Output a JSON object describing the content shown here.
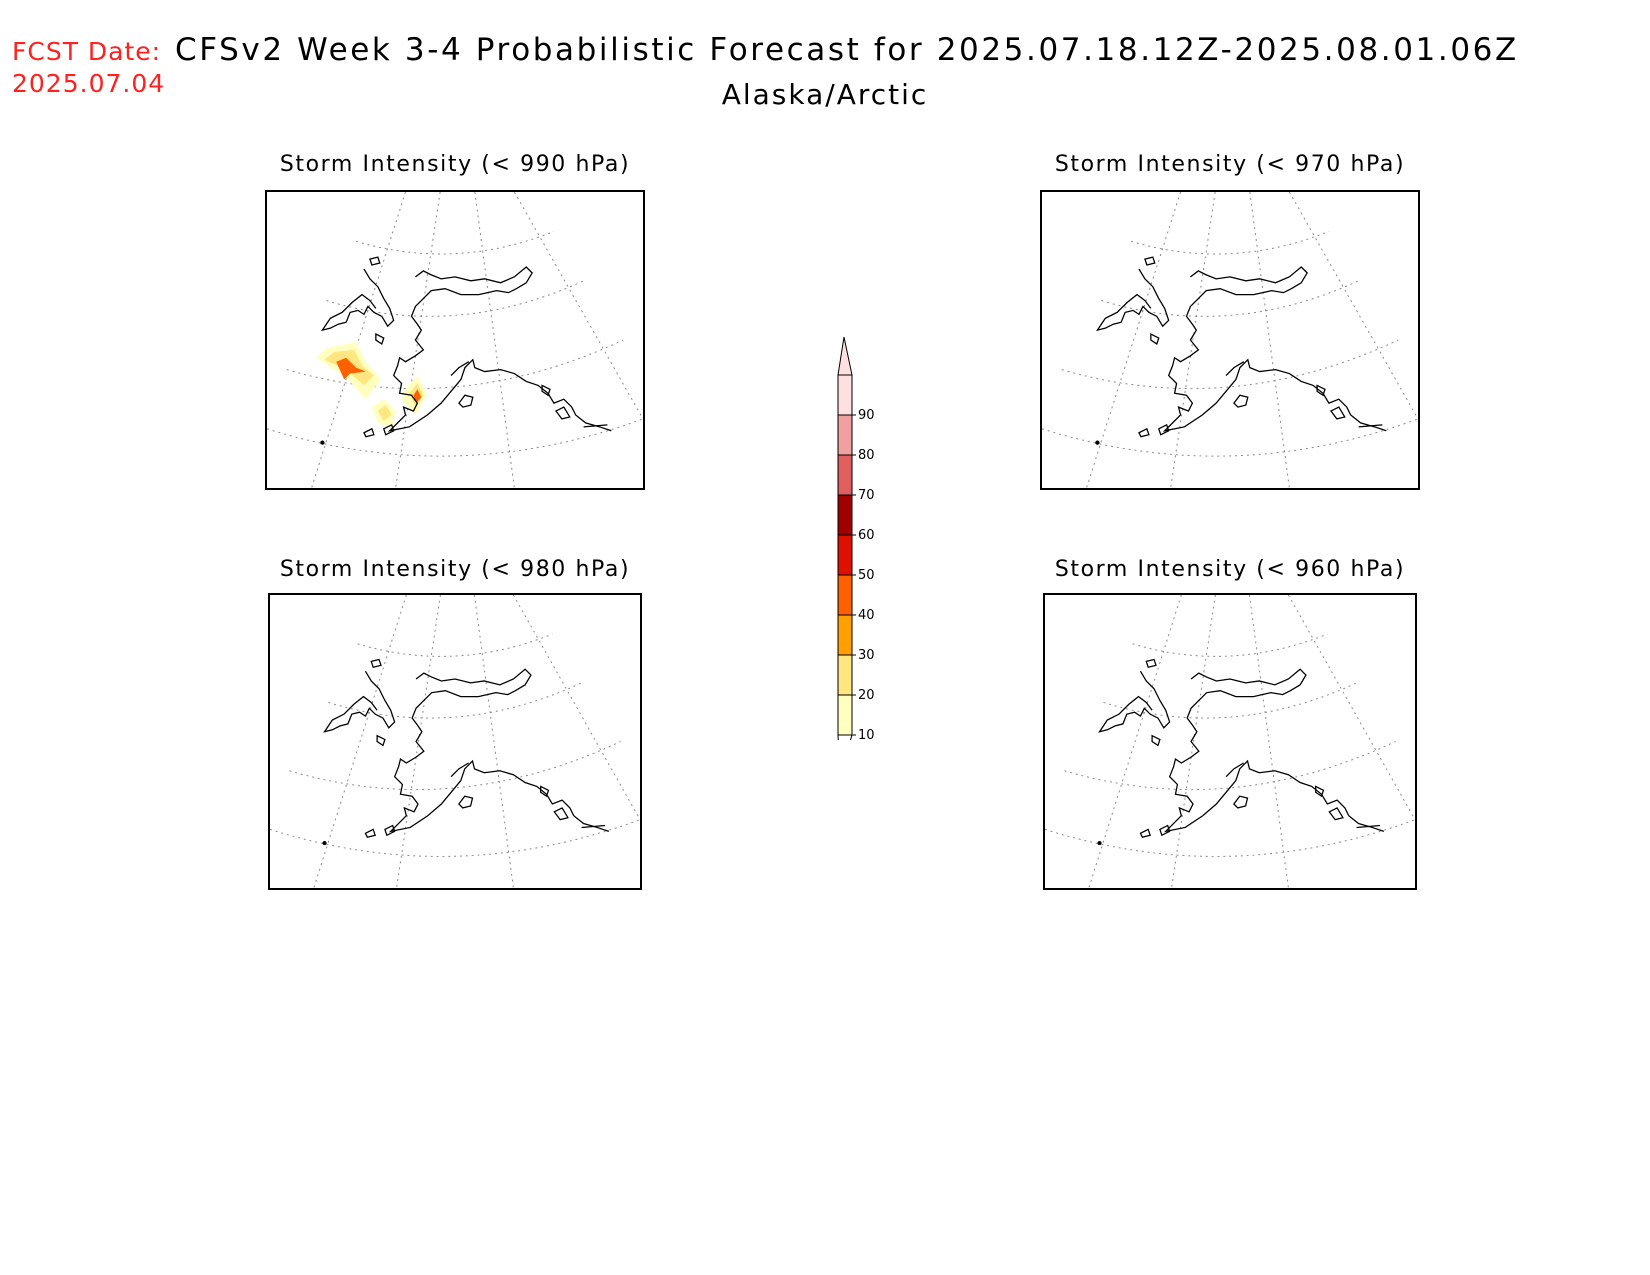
{
  "header": {
    "fcst_label": "FCST Date:",
    "fcst_date": "2025.07.04",
    "title": "CFSv2 Week 3-4 Probabilistic Forecast for 2025.07.18.12Z-2025.08.01.06Z",
    "subtitle": "Alaska/Arctic"
  },
  "panels": [
    {
      "title": "Storm Intensity (< 990 hPa)",
      "has_signal": true
    },
    {
      "title": "Storm Intensity (< 970 hPa)",
      "has_signal": false
    },
    {
      "title": "Storm Intensity (< 980 hPa)",
      "has_signal": false
    },
    {
      "title": "Storm Intensity (< 960 hPa)",
      "has_signal": false
    }
  ],
  "legend": {
    "levels": [
      "10",
      "20",
      "30",
      "40",
      "50",
      "60",
      "70",
      "80",
      "90"
    ],
    "colors": [
      "#ffffc0",
      "#ffe680",
      "#ffa000",
      "#ff6000",
      "#e01000",
      "#a00000",
      "#e06060",
      "#f0a0a0",
      "#ffe0e0"
    ]
  }
}
